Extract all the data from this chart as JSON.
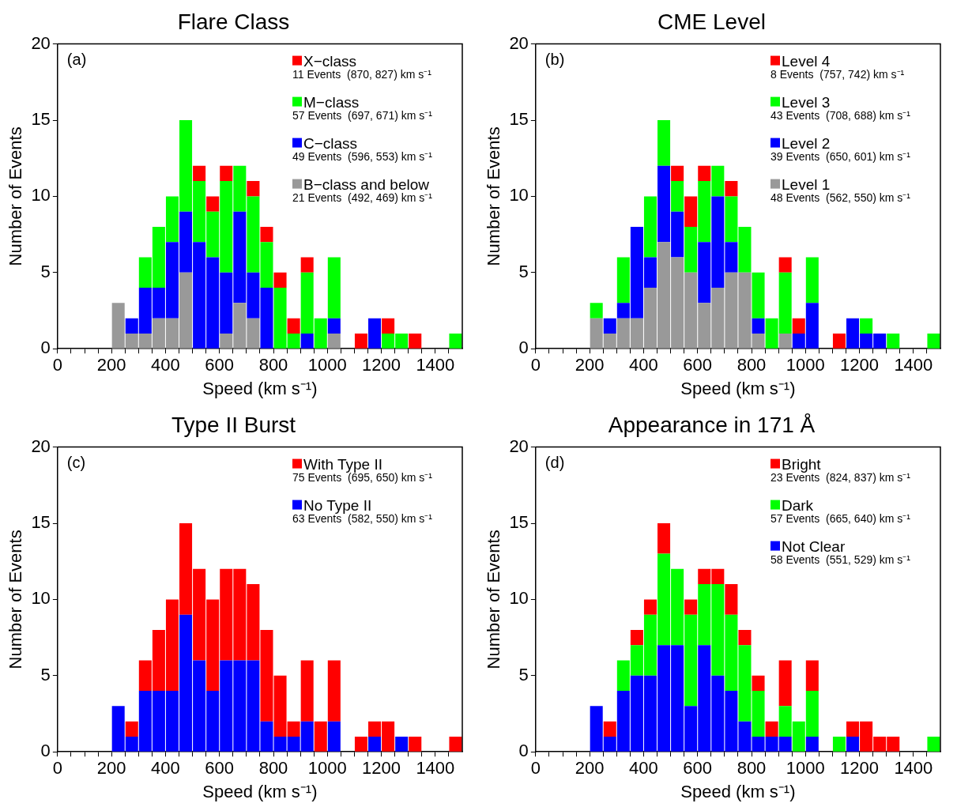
{
  "chart_data": [
    {
      "type": "bar",
      "title": "Flare Class",
      "xlabel": "Speed (km s⁻¹)",
      "ylabel": "Number of Events",
      "x": [
        225,
        275,
        325,
        375,
        425,
        475,
        525,
        575,
        625,
        675,
        725,
        775,
        825,
        875,
        925,
        975,
        1025,
        1075,
        1125,
        1175,
        1225,
        1275,
        1325,
        1375,
        1425,
        1475
      ],
      "xlim": [
        0,
        1500
      ],
      "xticks": [
        0,
        {
          "value": 50,
          "label": null
        },
        {
          "value": 100,
          "label": null
        },
        {
          "value": 150,
          "label": null
        },
        200,
        {
          "value": 250,
          "label": null
        },
        {
          "value": 300,
          "label": null
        },
        {
          "value": 350,
          "label": null
        },
        400,
        {
          "value": 450,
          "label": null
        },
        {
          "value": 500,
          "label": null
        },
        {
          "value": 550,
          "label": null
        },
        600,
        {
          "value": 650,
          "label": null
        },
        {
          "value": 700,
          "label": null
        },
        {
          "value": 750,
          "label": null
        },
        800,
        {
          "value": 850,
          "label": null
        },
        {
          "value": 900,
          "label": null
        },
        {
          "value": 950,
          "label": null
        },
        1000,
        {
          "value": 1050,
          "label": null
        },
        {
          "value": 1100,
          "label": null
        },
        {
          "value": 1150,
          "label": null
        },
        1200,
        {
          "value": 1250,
          "label": null
        },
        {
          "value": 1300,
          "label": null
        },
        {
          "value": 1350,
          "label": null
        },
        1400,
        {
          "value": 1450,
          "label": null
        }
      ],
      "ylim": [
        0,
        20
      ],
      "yticks": [
        0,
        5,
        10,
        15,
        20
      ],
      "stacked": true,
      "grid": false,
      "legend": "top right",
      "annotations": [
        "(a)",
        "11 Events  (870, 827) km s⁻¹",
        "57 Events  (697, 671) km s⁻¹",
        "49 Events  (596, 553) km s⁻¹",
        "21 Events  (492, 469) km s⁻¹"
      ],
      "series": [
        {
          "name": "B−class and below",
          "color": "#999999",
          "values": [
            3,
            1,
            1,
            2,
            2,
            5,
            0,
            0,
            1,
            3,
            2,
            0,
            0,
            0,
            0,
            0,
            1,
            0,
            0,
            0,
            0,
            0,
            0,
            0,
            0,
            0
          ]
        },
        {
          "name": "C−class",
          "color": "#0000ff",
          "values": [
            0,
            1,
            3,
            2,
            5,
            4,
            7,
            6,
            4,
            6,
            3,
            4,
            0,
            0,
            1,
            0,
            1,
            0,
            0,
            2,
            0,
            0,
            0,
            0,
            0,
            0
          ]
        },
        {
          "name": "M−class",
          "color": "#00ff00",
          "values": [
            0,
            0,
            2,
            4,
            3,
            6,
            4,
            3,
            6,
            3,
            5,
            3,
            4,
            1,
            4,
            2,
            4,
            0,
            0,
            0,
            1,
            1,
            0,
            0,
            0,
            1
          ]
        },
        {
          "name": "X−class",
          "color": "#ff0000",
          "values": [
            0,
            0,
            0,
            0,
            0,
            0,
            1,
            1,
            1,
            0,
            1,
            1,
            1,
            1,
            1,
            0,
            0,
            0,
            1,
            0,
            1,
            0,
            1,
            0,
            0,
            0
          ]
        }
      ]
    },
    {
      "type": "bar",
      "title": "CME Level",
      "xlabel": "Speed (km s⁻¹)",
      "ylabel": "Number of Events",
      "x": [
        225,
        275,
        325,
        375,
        425,
        475,
        525,
        575,
        625,
        675,
        725,
        775,
        825,
        875,
        925,
        975,
        1025,
        1075,
        1125,
        1175,
        1225,
        1275,
        1325,
        1375,
        1425,
        1475
      ],
      "xlim": [
        0,
        1500
      ],
      "xticks": [
        0,
        {
          "value": 50,
          "label": null
        },
        {
          "value": 100,
          "label": null
        },
        {
          "value": 150,
          "label": null
        },
        200,
        {
          "value": 250,
          "label": null
        },
        {
          "value": 300,
          "label": null
        },
        {
          "value": 350,
          "label": null
        },
        400,
        {
          "value": 450,
          "label": null
        },
        {
          "value": 500,
          "label": null
        },
        {
          "value": 550,
          "label": null
        },
        600,
        {
          "value": 650,
          "label": null
        },
        {
          "value": 700,
          "label": null
        },
        {
          "value": 750,
          "label": null
        },
        800,
        {
          "value": 850,
          "label": null
        },
        {
          "value": 900,
          "label": null
        },
        {
          "value": 950,
          "label": null
        },
        1000,
        {
          "value": 1050,
          "label": null
        },
        {
          "value": 1100,
          "label": null
        },
        {
          "value": 1150,
          "label": null
        },
        1200,
        {
          "value": 1250,
          "label": null
        },
        {
          "value": 1300,
          "label": null
        },
        {
          "value": 1350,
          "label": null
        },
        1400,
        {
          "value": 1450,
          "label": null
        }
      ],
      "ylim": [
        0,
        20
      ],
      "yticks": [
        0,
        5,
        10,
        15,
        20
      ],
      "stacked": true,
      "grid": false,
      "legend": "top right",
      "annotations": [
        "(b)",
        "8 Events  (757, 742) km s⁻¹",
        "43 Events  (708, 688) km s⁻¹",
        "39 Events  (650, 601) km s⁻¹",
        "48 Events  (562, 550) km s⁻¹"
      ],
      "series": [
        {
          "name": "Level 1",
          "color": "#999999",
          "values": [
            2,
            1,
            2,
            2,
            4,
            7,
            6,
            5,
            3,
            4,
            5,
            5,
            1,
            0,
            1,
            0,
            0,
            0,
            0,
            0,
            0,
            0,
            0,
            0,
            0,
            0
          ]
        },
        {
          "name": "Level 2",
          "color": "#0000ff",
          "values": [
            0,
            1,
            1,
            6,
            2,
            5,
            3,
            0,
            4,
            6,
            2,
            0,
            1,
            0,
            0,
            1,
            3,
            0,
            0,
            2,
            1,
            1,
            0,
            0,
            0,
            0
          ]
        },
        {
          "name": "Level 3",
          "color": "#00ff00",
          "values": [
            1,
            0,
            3,
            0,
            4,
            3,
            2,
            3,
            4,
            2,
            3,
            3,
            3,
            2,
            4,
            0,
            3,
            0,
            0,
            0,
            1,
            0,
            1,
            0,
            0,
            1
          ]
        },
        {
          "name": "Level 4",
          "color": "#ff0000",
          "values": [
            0,
            0,
            0,
            0,
            0,
            0,
            1,
            2,
            1,
            0,
            1,
            0,
            0,
            0,
            1,
            1,
            0,
            0,
            1,
            0,
            0,
            0,
            0,
            0,
            0,
            0
          ]
        }
      ]
    },
    {
      "type": "bar",
      "title": "Type II Burst",
      "xlabel": "Speed (km s⁻¹)",
      "ylabel": "Number of Events",
      "x": [
        225,
        275,
        325,
        375,
        425,
        475,
        525,
        575,
        625,
        675,
        725,
        775,
        825,
        875,
        925,
        975,
        1025,
        1075,
        1125,
        1175,
        1225,
        1275,
        1325,
        1375,
        1425,
        1475
      ],
      "xlim": [
        0,
        1500
      ],
      "xticks": [
        0,
        {
          "value": 50,
          "label": null
        },
        {
          "value": 100,
          "label": null
        },
        {
          "value": 150,
          "label": null
        },
        200,
        {
          "value": 250,
          "label": null
        },
        {
          "value": 300,
          "label": null
        },
        {
          "value": 350,
          "label": null
        },
        400,
        {
          "value": 450,
          "label": null
        },
        {
          "value": 500,
          "label": null
        },
        {
          "value": 550,
          "label": null
        },
        600,
        {
          "value": 650,
          "label": null
        },
        {
          "value": 700,
          "label": null
        },
        {
          "value": 750,
          "label": null
        },
        800,
        {
          "value": 850,
          "label": null
        },
        {
          "value": 900,
          "label": null
        },
        {
          "value": 950,
          "label": null
        },
        1000,
        {
          "value": 1050,
          "label": null
        },
        {
          "value": 1100,
          "label": null
        },
        {
          "value": 1150,
          "label": null
        },
        1200,
        {
          "value": 1250,
          "label": null
        },
        {
          "value": 1300,
          "label": null
        },
        {
          "value": 1350,
          "label": null
        },
        1400,
        {
          "value": 1450,
          "label": null
        }
      ],
      "ylim": [
        0,
        20
      ],
      "yticks": [
        0,
        5,
        10,
        15,
        20
      ],
      "stacked": true,
      "grid": false,
      "legend": "top right",
      "annotations": [
        "(c)",
        "75 Events  (695, 650) km s⁻¹",
        "63 Events  (582, 550) km s⁻¹"
      ],
      "series": [
        {
          "name": "No Type II",
          "color": "#0000ff",
          "values": [
            3,
            1,
            4,
            4,
            4,
            9,
            6,
            4,
            6,
            6,
            6,
            2,
            1,
            1,
            2,
            0,
            2,
            0,
            0,
            1,
            0,
            1,
            0,
            0,
            0,
            0
          ]
        },
        {
          "name": "With Type II",
          "color": "#ff0000",
          "values": [
            0,
            1,
            2,
            4,
            6,
            6,
            6,
            6,
            6,
            6,
            5,
            6,
            4,
            1,
            4,
            2,
            4,
            0,
            1,
            1,
            2,
            0,
            1,
            0,
            0,
            1
          ]
        }
      ]
    },
    {
      "type": "bar",
      "title": "Appearance in 171 Å",
      "xlabel": "Speed (km s⁻¹)",
      "ylabel": "Number of Events",
      "x": [
        225,
        275,
        325,
        375,
        425,
        475,
        525,
        575,
        625,
        675,
        725,
        775,
        825,
        875,
        925,
        975,
        1025,
        1075,
        1125,
        1175,
        1225,
        1275,
        1325,
        1375,
        1425,
        1475
      ],
      "xlim": [
        0,
        1500
      ],
      "xticks": [
        0,
        {
          "value": 50,
          "label": null
        },
        {
          "value": 100,
          "label": null
        },
        {
          "value": 150,
          "label": null
        },
        200,
        {
          "value": 250,
          "label": null
        },
        {
          "value": 300,
          "label": null
        },
        {
          "value": 350,
          "label": null
        },
        400,
        {
          "value": 450,
          "label": null
        },
        {
          "value": 500,
          "label": null
        },
        {
          "value": 550,
          "label": null
        },
        600,
        {
          "value": 650,
          "label": null
        },
        {
          "value": 700,
          "label": null
        },
        {
          "value": 750,
          "label": null
        },
        800,
        {
          "value": 850,
          "label": null
        },
        {
          "value": 900,
          "label": null
        },
        {
          "value": 950,
          "label": null
        },
        1000,
        {
          "value": 1050,
          "label": null
        },
        {
          "value": 1100,
          "label": null
        },
        {
          "value": 1150,
          "label": null
        },
        1200,
        {
          "value": 1250,
          "label": null
        },
        {
          "value": 1300,
          "label": null
        },
        {
          "value": 1350,
          "label": null
        },
        1400,
        {
          "value": 1450,
          "label": null
        }
      ],
      "ylim": [
        0,
        20
      ],
      "yticks": [
        0,
        5,
        10,
        15,
        20
      ],
      "stacked": true,
      "grid": false,
      "legend": "top right",
      "annotations": [
        "(d)",
        "23 Events  (824, 837) km s⁻¹",
        "57 Events  (665, 640) km s⁻¹",
        "58 Events  (551, 529) km s⁻¹"
      ],
      "series": [
        {
          "name": "Not Clear",
          "color": "#0000ff",
          "values": [
            3,
            1,
            4,
            5,
            5,
            7,
            7,
            3,
            7,
            5,
            4,
            2,
            1,
            1,
            1,
            0,
            1,
            0,
            0,
            1,
            0,
            0,
            0,
            0,
            0,
            0
          ]
        },
        {
          "name": "Dark",
          "color": "#00ff00",
          "values": [
            0,
            0,
            2,
            2,
            4,
            6,
            5,
            6,
            4,
            6,
            5,
            5,
            3,
            0,
            2,
            2,
            3,
            0,
            1,
            0,
            0,
            0,
            0,
            0,
            0,
            1
          ]
        },
        {
          "name": "Bright",
          "color": "#ff0000",
          "values": [
            0,
            1,
            0,
            1,
            1,
            2,
            0,
            1,
            1,
            1,
            2,
            1,
            1,
            1,
            3,
            0,
            2,
            0,
            0,
            1,
            2,
            1,
            1,
            0,
            0,
            0
          ]
        }
      ]
    }
  ]
}
